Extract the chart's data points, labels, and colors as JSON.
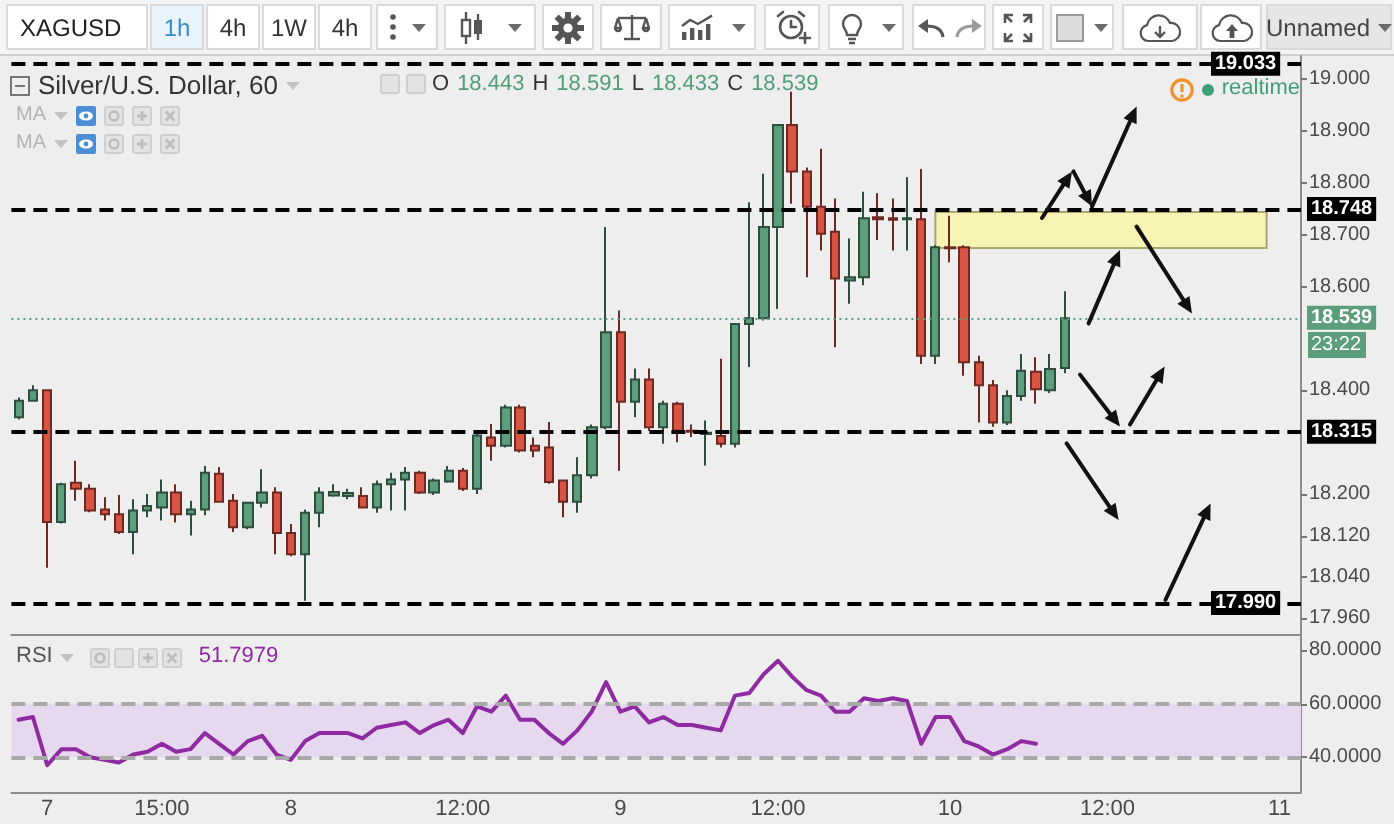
{
  "chart_data": [
    {
      "type": "other",
      "annotations": [
        "XAGUSD",
        "1h",
        "4h",
        "1W",
        "4h",
        "Unnamed"
      ]
    },
    {
      "type": "candlestick",
      "title": "Silver/U.S. Dollar, 60",
      "annotations": [
        "O 18.443 H 18.591 L 18.433 C 18.539",
        "MA",
        "MA",
        "realtime",
        "23:22"
      ],
      "categories": [
        null,
        null,
        "7",
        null,
        null,
        null,
        null,
        null,
        null,
        null,
        "15:00",
        null,
        null,
        null,
        null,
        null,
        null,
        null,
        null,
        "8",
        null,
        null,
        null,
        null,
        null,
        null,
        null,
        null,
        null,
        null,
        null,
        "12:00",
        null,
        null,
        null,
        null,
        null,
        null,
        null,
        null,
        null,
        null,
        "9",
        null,
        null,
        null,
        null,
        null,
        null,
        null,
        null,
        null,
        null,
        "12:00",
        null,
        null,
        null,
        null,
        null,
        null,
        null,
        null,
        null,
        null,
        null,
        "10",
        null,
        null,
        null,
        null,
        null,
        null,
        null,
        null,
        null,
        null,
        "12:00",
        null,
        null,
        null,
        null,
        null,
        null,
        null,
        null,
        null,
        null,
        null,
        "11",
        null
      ],
      "ohlc": [
        [
          18.348,
          18.386,
          18.344,
          18.38
        ],
        [
          18.38,
          18.41,
          18.378,
          18.4
        ],
        [
          18.4,
          18.402,
          18.058,
          18.146
        ],
        [
          18.146,
          18.222,
          18.143,
          18.219
        ],
        [
          18.222,
          18.264,
          18.187,
          18.21
        ],
        [
          18.21,
          18.219,
          18.165,
          18.168
        ],
        [
          18.17,
          18.194,
          18.149,
          18.161
        ],
        [
          18.161,
          18.198,
          18.123,
          18.127
        ],
        [
          18.127,
          18.19,
          18.084,
          18.168
        ],
        [
          18.168,
          18.2,
          18.155,
          18.177
        ],
        [
          18.174,
          18.228,
          18.149,
          18.203
        ],
        [
          18.203,
          18.219,
          18.145,
          18.161
        ],
        [
          18.161,
          18.187,
          18.12,
          18.17
        ],
        [
          18.17,
          18.254,
          18.159,
          18.241
        ],
        [
          18.239,
          18.252,
          18.183,
          18.185
        ],
        [
          18.187,
          18.2,
          18.127,
          18.136
        ],
        [
          18.136,
          18.185,
          18.132,
          18.183
        ],
        [
          18.183,
          18.248,
          18.174,
          18.203
        ],
        [
          18.203,
          18.213,
          18.084,
          18.125
        ],
        [
          18.125,
          18.142,
          18.08,
          18.084
        ],
        [
          18.084,
          18.17,
          17.994,
          18.164
        ],
        [
          18.164,
          18.213,
          18.136,
          18.203
        ],
        [
          18.197,
          18.219,
          18.195,
          18.204
        ],
        [
          18.196,
          18.21,
          18.19,
          18.202
        ],
        [
          18.196,
          18.213,
          18.172,
          18.174
        ],
        [
          18.174,
          18.226,
          18.164,
          18.219
        ],
        [
          18.219,
          18.241,
          18.168,
          18.228
        ],
        [
          18.228,
          18.252,
          18.168,
          18.241
        ],
        [
          18.241,
          18.245,
          18.2,
          18.203
        ],
        [
          18.203,
          18.23,
          18.198,
          18.226
        ],
        [
          18.224,
          18.254,
          18.222,
          18.245
        ],
        [
          18.245,
          18.25,
          18.206,
          18.21
        ],
        [
          18.21,
          18.316,
          18.2,
          18.313
        ],
        [
          18.309,
          18.335,
          18.264,
          18.293
        ],
        [
          18.293,
          18.372,
          18.29,
          18.367
        ],
        [
          18.367,
          18.372,
          18.28,
          18.284
        ],
        [
          18.293,
          18.309,
          18.271,
          18.284
        ],
        [
          18.29,
          18.339,
          18.22,
          18.223
        ],
        [
          18.226,
          18.228,
          18.155,
          18.185
        ],
        [
          18.185,
          18.271,
          18.164,
          18.236
        ],
        [
          18.236,
          18.334,
          18.23,
          18.329
        ],
        [
          18.329,
          18.715,
          18.325,
          18.512
        ],
        [
          18.512,
          18.554,
          18.245,
          18.378
        ],
        [
          18.378,
          18.442,
          18.348,
          18.421
        ],
        [
          18.421,
          18.442,
          18.322,
          18.329
        ],
        [
          18.329,
          18.38,
          18.297,
          18.374
        ],
        [
          18.374,
          18.378,
          18.3,
          18.322
        ],
        [
          18.322,
          18.334,
          18.31,
          18.32
        ],
        [
          18.316,
          18.342,
          18.255,
          18.318
        ],
        [
          18.312,
          18.461,
          18.29,
          18.297
        ],
        [
          18.297,
          18.53,
          18.29,
          18.528
        ],
        [
          18.528,
          18.763,
          18.445,
          18.539
        ],
        [
          18.539,
          18.818,
          18.535,
          18.715
        ],
        [
          18.715,
          18.914,
          18.557,
          18.912
        ],
        [
          18.912,
          18.976,
          18.76,
          18.822
        ],
        [
          18.822,
          18.83,
          18.618,
          18.754
        ],
        [
          18.754,
          18.866,
          18.67,
          18.702
        ],
        [
          18.706,
          18.77,
          18.483,
          18.616
        ],
        [
          18.612,
          18.693,
          18.567,
          18.618
        ],
        [
          18.618,
          18.783,
          18.603,
          18.732
        ],
        [
          18.734,
          18.78,
          18.69,
          18.73
        ],
        [
          18.732,
          18.77,
          18.67,
          18.729
        ],
        [
          18.73,
          18.811,
          18.67,
          18.732
        ],
        [
          18.73,
          18.827,
          18.451,
          18.467
        ],
        [
          18.467,
          18.68,
          18.451,
          18.676
        ],
        [
          18.676,
          18.737,
          18.647,
          18.674
        ],
        [
          18.676,
          18.68,
          18.428,
          18.454
        ],
        [
          18.454,
          18.467,
          18.338,
          18.41
        ],
        [
          18.41,
          18.42,
          18.33,
          18.338
        ],
        [
          18.338,
          18.4,
          18.333,
          18.389
        ],
        [
          18.389,
          18.47,
          18.38,
          18.438
        ],
        [
          18.436,
          18.464,
          18.374,
          18.402
        ],
        [
          18.4,
          18.47,
          18.395,
          18.441
        ],
        [
          18.443,
          18.591,
          18.433,
          18.539
        ],
        null,
        null,
        null,
        null,
        null,
        null,
        null,
        null,
        null,
        null,
        null,
        null,
        null,
        null,
        null,
        null
      ],
      "colors": [
        "#5c9e7b",
        "#5c9e7b",
        "#d95443",
        "#5c9e7b",
        "#d95443",
        "#d95443",
        "#d95443",
        "#d95443",
        "#5c9e7b",
        "#5c9e7b",
        "#5c9e7b",
        "#d95443",
        "#5c9e7b",
        "#5c9e7b",
        "#d95443",
        "#d95443",
        "#5c9e7b",
        "#5c9e7b",
        "#d95443",
        "#d95443",
        "#5c9e7b",
        "#5c9e7b",
        "#5c9e7b",
        "#5c9e7b",
        "#d95443",
        "#5c9e7b",
        "#5c9e7b",
        "#5c9e7b",
        "#d95443",
        "#5c9e7b",
        "#5c9e7b",
        "#d95443",
        "#5c9e7b",
        "#d95443",
        "#5c9e7b",
        "#d95443",
        "#d95443",
        "#d95443",
        "#d95443",
        "#5c9e7b",
        "#5c9e7b",
        "#5c9e7b",
        "#d95443",
        "#5c9e7b",
        "#d95443",
        "#5c9e7b",
        "#d95443",
        "#d95443",
        "#5c9e7b",
        "#d95443",
        "#5c9e7b",
        "#5c9e7b",
        "#5c9e7b",
        "#5c9e7b",
        "#d95443",
        "#d95443",
        "#d95443",
        "#d95443",
        "#5c9e7b",
        "#5c9e7b",
        "#d95443",
        "#d95443",
        "#5c9e7b",
        "#d95443",
        "#5c9e7b",
        "#d95443",
        "#d95443",
        "#d95443",
        "#d95443",
        "#5c9e7b",
        "#5c9e7b",
        "#d95443",
        "#5c9e7b",
        "#5c9e7b",
        null,
        null,
        null,
        null,
        null,
        null,
        null,
        null,
        null,
        null,
        null,
        null,
        null,
        null,
        null,
        null
      ],
      "ylim": [
        17.93,
        19.045
      ],
      "yticks": [
        {
          "value": 19,
          "label": "19.000"
        },
        {
          "value": 18.9,
          "label": "18.900"
        },
        {
          "value": 18.8,
          "label": "18.800"
        },
        {
          "value": 18.7,
          "label": "18.700"
        },
        {
          "value": 18.6,
          "label": "18.600"
        },
        {
          "value": 18.4,
          "label": "18.400"
        },
        {
          "value": 18.2,
          "label": "18.200"
        },
        {
          "value": 18.12,
          "label": "18.120"
        },
        {
          "value": 18.04,
          "label": "18.040"
        },
        {
          "value": 17.96,
          "label": "17.960"
        }
      ],
      "ref_lines": [
        {
          "axis": "y",
          "value": 19.033,
          "label": "19.033",
          "color": "#000000",
          "line_style": "dashed"
        },
        {
          "axis": "y",
          "value": 18.748,
          "label": "18.748",
          "color": "#000000",
          "line_style": "dashed"
        },
        {
          "axis": "y",
          "value": 18.539,
          "label": "18.539",
          "color": "#5c9e7b",
          "line_style": "dotted"
        },
        {
          "axis": "y",
          "value": 18.315,
          "label": "18.315",
          "color": "#000000",
          "line_style": "dashed"
        },
        {
          "axis": "y",
          "value": 17.99,
          "label": "17.990",
          "color": "#000000",
          "line_style": "dashed"
        }
      ]
    },
    {
      "type": "line",
      "title": "RSI",
      "annotations": [
        "51.7979"
      ],
      "categories": [
        null,
        null,
        null,
        null,
        null,
        null,
        null,
        null,
        null,
        null,
        null,
        null,
        null,
        null,
        null,
        null,
        null,
        null,
        null,
        null,
        null,
        null,
        null,
        null,
        null,
        null,
        null,
        null,
        null,
        null,
        null,
        null,
        null,
        null,
        null,
        null,
        null,
        null,
        null,
        null,
        null,
        null,
        null,
        null,
        null,
        null,
        null,
        null,
        null,
        null,
        null,
        null,
        null,
        null,
        null,
        null,
        null,
        null,
        null,
        null,
        null,
        null,
        null,
        null,
        null,
        null,
        null,
        null,
        null,
        null,
        null,
        null,
        null,
        null,
        null,
        null,
        null,
        null,
        null,
        null,
        null,
        null,
        null,
        null,
        null,
        null,
        null,
        null,
        null,
        null
      ],
      "series": [
        {
          "color": "#8e2ba1",
          "values": [
            54,
            55,
            37,
            43,
            43,
            40,
            39,
            38,
            41,
            42,
            45,
            42,
            43,
            49,
            45,
            41,
            46,
            48,
            41,
            39,
            46,
            49,
            49,
            49,
            47,
            51,
            52,
            53,
            49,
            52,
            54,
            49,
            59,
            57,
            63,
            54,
            54,
            49,
            45,
            50,
            57,
            68,
            57,
            59,
            53,
            55,
            52,
            52,
            51,
            50,
            63,
            64,
            71,
            76,
            70,
            65,
            63,
            57,
            57,
            62,
            61,
            62,
            61,
            45,
            55,
            55,
            46,
            44,
            41,
            43,
            46,
            45,
            null,
            null,
            null,
            null,
            null,
            null,
            null,
            null,
            null,
            null,
            null,
            null,
            null,
            null,
            null,
            null,
            null,
            null
          ]
        }
      ],
      "ylim": [
        27,
        86
      ],
      "yticks": [
        {
          "value": 80,
          "label": "80.0000"
        },
        {
          "value": 60,
          "label": "60.0000"
        },
        {
          "value": 40,
          "label": "40.0000"
        }
      ],
      "bands": [
        {
          "axis": "y",
          "from": 40,
          "to": 60,
          "color": "#e6d8ee"
        }
      ],
      "ref_lines": [
        {
          "axis": "y",
          "value": 60,
          "color": "#a9a9a9",
          "line_style": "dashed"
        },
        {
          "axis": "y",
          "value": 40,
          "color": "#a9a9a9",
          "line_style": "dashed"
        }
      ],
      "tick_labels": "y"
    }
  ]
}
